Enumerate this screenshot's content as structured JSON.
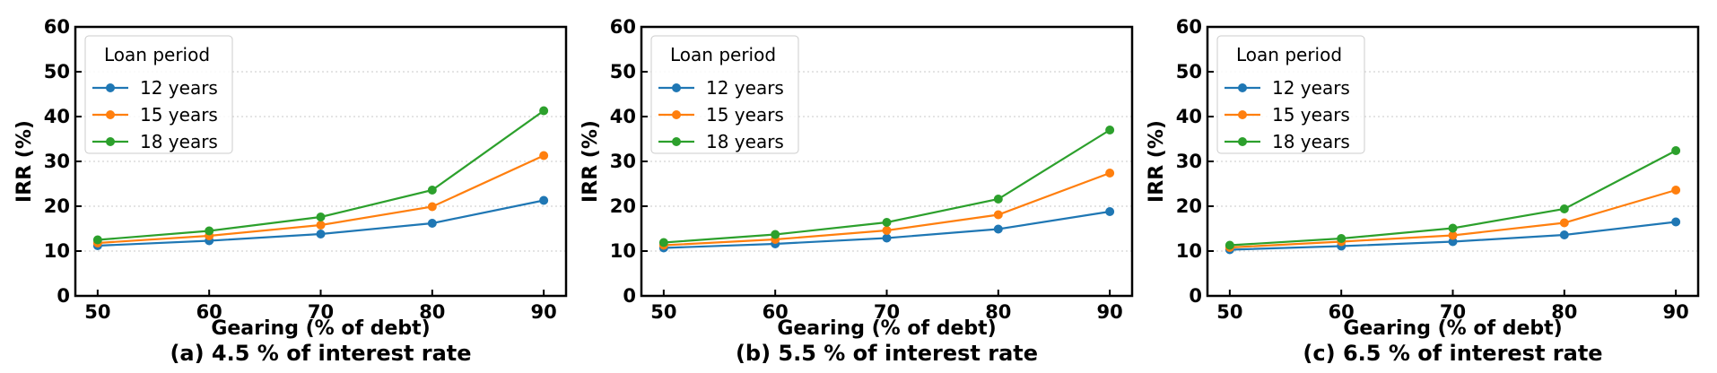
{
  "chart_data": [
    {
      "type": "line",
      "title": "(a) 4.5 % of interest rate",
      "xlabel": "Gearing (% of debt)",
      "ylabel": "IRR (%)",
      "x": [
        50,
        60,
        70,
        80,
        90
      ],
      "xticks": [
        "50",
        "60",
        "70",
        "80",
        "90"
      ],
      "yticks": [
        "0",
        "10",
        "20",
        "30",
        "40",
        "50",
        "60"
      ],
      "xlim": [
        48,
        92
      ],
      "ylim": [
        0,
        60
      ],
      "grid": "horizontal-dotted",
      "legend_title": "Loan period",
      "legend_position": "top-left",
      "series": [
        {
          "name": "12 years",
          "color": "#1f77b4",
          "values": [
            11.2,
            12.3,
            13.8,
            16.2,
            21.3
          ]
        },
        {
          "name": "15 years",
          "color": "#ff7f0e",
          "values": [
            11.8,
            13.4,
            15.8,
            19.9,
            31.3
          ]
        },
        {
          "name": "18 years",
          "color": "#2ca02c",
          "values": [
            12.5,
            14.5,
            17.6,
            23.6,
            41.3
          ]
        }
      ]
    },
    {
      "type": "line",
      "title": "(b) 5.5 % of interest rate",
      "xlabel": "Gearing (% of debt)",
      "ylabel": "IRR (%)",
      "x": [
        50,
        60,
        70,
        80,
        90
      ],
      "xticks": [
        "50",
        "60",
        "70",
        "80",
        "90"
      ],
      "yticks": [
        "0",
        "10",
        "20",
        "30",
        "40",
        "50",
        "60"
      ],
      "xlim": [
        48,
        92
      ],
      "ylim": [
        0,
        60
      ],
      "grid": "horizontal-dotted",
      "legend_title": "Loan period",
      "legend_position": "top-left",
      "series": [
        {
          "name": "12 years",
          "color": "#1f77b4",
          "values": [
            10.7,
            11.6,
            12.9,
            14.9,
            18.8
          ]
        },
        {
          "name": "15 years",
          "color": "#ff7f0e",
          "values": [
            11.3,
            12.6,
            14.6,
            18.1,
            27.4
          ]
        },
        {
          "name": "18 years",
          "color": "#2ca02c",
          "values": [
            11.9,
            13.7,
            16.4,
            21.6,
            37.0
          ]
        }
      ]
    },
    {
      "type": "line",
      "title": "(c) 6.5 % of interest rate",
      "xlabel": "Gearing (% of debt)",
      "ylabel": "IRR (%)",
      "x": [
        50,
        60,
        70,
        80,
        90
      ],
      "xticks": [
        "50",
        "60",
        "70",
        "80",
        "90"
      ],
      "yticks": [
        "0",
        "10",
        "20",
        "30",
        "40",
        "50",
        "60"
      ],
      "xlim": [
        48,
        92
      ],
      "ylim": [
        0,
        60
      ],
      "grid": "horizontal-dotted",
      "legend_title": "Loan period",
      "legend_position": "top-left",
      "series": [
        {
          "name": "12 years",
          "color": "#1f77b4",
          "values": [
            10.3,
            11.1,
            12.1,
            13.6,
            16.5
          ]
        },
        {
          "name": "15 years",
          "color": "#ff7f0e",
          "values": [
            10.8,
            12.1,
            13.5,
            16.3,
            23.6
          ]
        },
        {
          "name": "18 years",
          "color": "#2ca02c",
          "values": [
            11.3,
            12.8,
            15.1,
            19.4,
            32.4
          ]
        }
      ]
    }
  ]
}
